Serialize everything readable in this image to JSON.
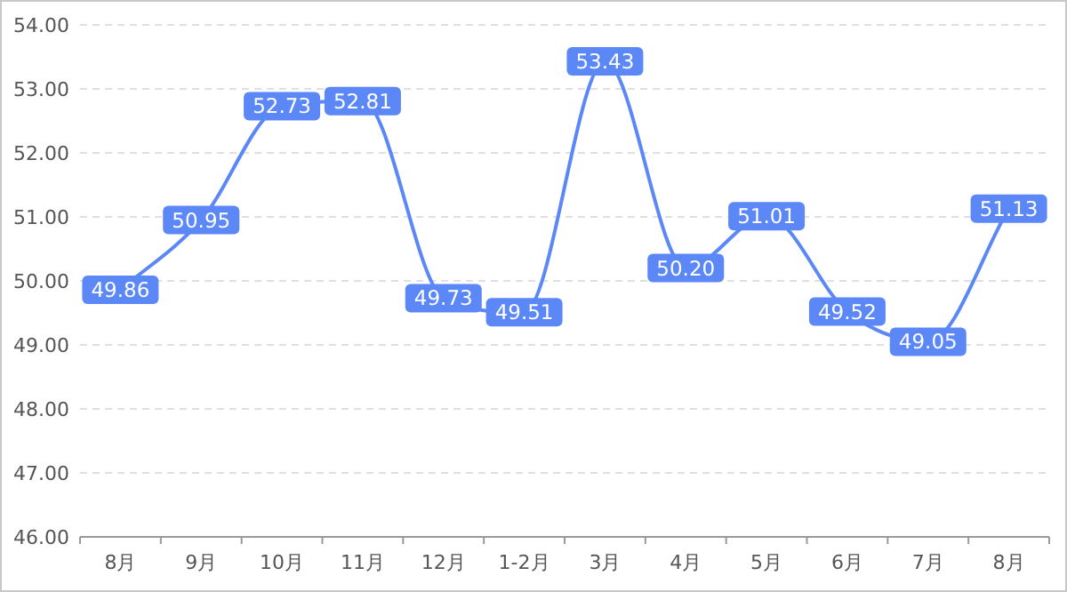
{
  "chart_data": {
    "type": "line",
    "categories": [
      "8月",
      "9月",
      "10月",
      "11月",
      "12月",
      "1-2月",
      "3月",
      "4月",
      "5月",
      "6月",
      "7月",
      "8月"
    ],
    "values": [
      49.86,
      50.95,
      52.73,
      52.81,
      49.73,
      49.51,
      53.43,
      50.2,
      51.01,
      49.52,
      49.05,
      51.13
    ],
    "color": "#5b87f7",
    "ylim": [
      46,
      54
    ],
    "yticks": [
      {
        "value": 46,
        "label": "46.00"
      },
      {
        "value": 47,
        "label": "47.00"
      },
      {
        "value": 48,
        "label": "48.00"
      },
      {
        "value": 49,
        "label": "49.00"
      },
      {
        "value": 50,
        "label": "50.00"
      },
      {
        "value": 51,
        "label": "51.00"
      },
      {
        "value": 52,
        "label": "52.00"
      },
      {
        "value": 53,
        "label": "53.00"
      },
      {
        "value": 54,
        "label": "54.00"
      }
    ],
    "grid": "y",
    "marker": "square",
    "value_labels": [
      "49.86",
      "50.95",
      "52.73",
      "52.81",
      "49.73",
      "49.51",
      "53.43",
      "50.20",
      "51.01",
      "49.52",
      "49.05",
      "51.13"
    ]
  }
}
